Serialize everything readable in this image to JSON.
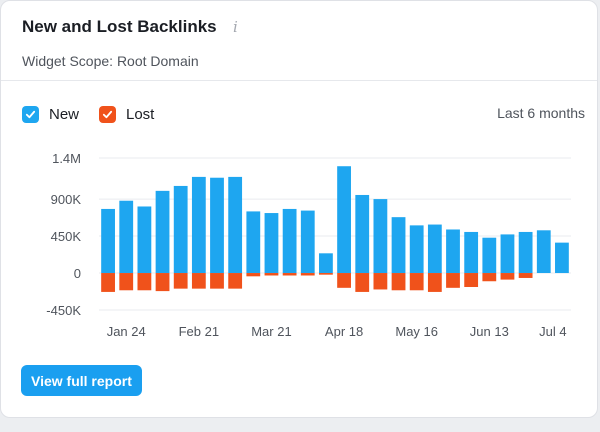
{
  "widget": {
    "title": "New and Lost Backlinks",
    "scope": "Widget Scope: Root Domain",
    "info_icon": "info-icon",
    "button_label": "View full report",
    "colors": {
      "new": "#1ea6f0",
      "lost": "#f0521b",
      "button": "#1a9ff0"
    }
  },
  "legend": {
    "new_label": "New",
    "lost_label": "Lost",
    "period": "Last 6 months"
  },
  "chart_data": {
    "type": "bar",
    "stacked": "diverging",
    "ylim": [
      -450000,
      1400000
    ],
    "yticks": [
      1400000,
      900000,
      450000,
      0,
      -450000
    ],
    "ytick_labels": [
      "1.4M",
      "900K",
      "450K",
      "0",
      "-450K"
    ],
    "xtick_labels": [
      "Jan 24",
      "Feb 21",
      "Mar 21",
      "Apr 18",
      "May 16",
      "Jun 13",
      "Jul 4"
    ],
    "xtick_bar_index": [
      1,
      5,
      9,
      13,
      17,
      21,
      24.5
    ],
    "series": [
      {
        "name": "New",
        "values": [
          780000,
          880000,
          810000,
          1000000,
          1060000,
          1170000,
          1160000,
          1170000,
          750000,
          730000,
          780000,
          760000,
          240000,
          1300000,
          950000,
          900000,
          680000,
          580000,
          590000,
          530000,
          500000,
          430000,
          470000,
          500000,
          520000,
          370000
        ]
      },
      {
        "name": "Lost",
        "values": [
          -230000,
          -210000,
          -210000,
          -220000,
          -190000,
          -190000,
          -190000,
          -190000,
          -40000,
          -30000,
          -30000,
          -30000,
          -20000,
          -180000,
          -230000,
          -200000,
          -210000,
          -210000,
          -230000,
          -180000,
          -170000,
          -100000,
          -80000,
          -60000,
          0,
          0
        ]
      }
    ],
    "xlabel": "",
    "ylabel": ""
  }
}
